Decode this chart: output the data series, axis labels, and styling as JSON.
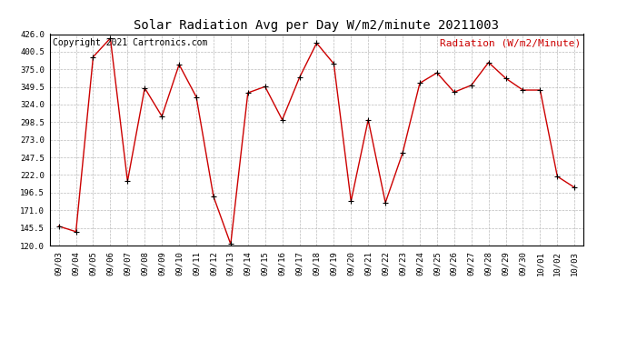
{
  "title": "Solar Radiation Avg per Day W/m2/minute 20211003",
  "copyright_text": "Copyright 2021 Cartronics.com",
  "legend_label": "Radiation (W/m2/Minute)",
  "dates": [
    "09/03",
    "09/04",
    "09/05",
    "09/06",
    "09/07",
    "09/08",
    "09/09",
    "09/10",
    "09/11",
    "09/12",
    "09/13",
    "09/14",
    "09/15",
    "09/16",
    "09/17",
    "09/18",
    "09/19",
    "09/20",
    "09/21",
    "09/22",
    "09/23",
    "09/24",
    "09/25",
    "09/26",
    "09/27",
    "09/28",
    "09/29",
    "09/30",
    "10/01",
    "10/02",
    "10/03"
  ],
  "values": [
    148.0,
    140.0,
    393.0,
    420.0,
    213.0,
    348.0,
    307.0,
    382.0,
    335.0,
    191.0,
    122.0,
    341.0,
    350.0,
    302.0,
    363.0,
    413.0,
    383.0,
    184.0,
    302.0,
    182.0,
    254.0,
    355.0,
    370.0,
    342.0,
    352.0,
    385.0,
    362.0,
    345.0,
    345.0,
    220.0,
    204.0
  ],
  "ylim": [
    120.0,
    426.0
  ],
  "yticks": [
    120.0,
    145.5,
    171.0,
    196.5,
    222.0,
    247.5,
    273.0,
    298.5,
    324.0,
    349.5,
    375.0,
    400.5,
    426.0
  ],
  "line_color": "#cc0000",
  "marker_color": "#000000",
  "grid_color": "#bbbbbb",
  "background_color": "#ffffff",
  "title_fontsize": 10,
  "copyright_fontsize": 7,
  "legend_fontsize": 8,
  "tick_fontsize": 6.5,
  "fig_width": 6.9,
  "fig_height": 3.75,
  "dpi": 100
}
